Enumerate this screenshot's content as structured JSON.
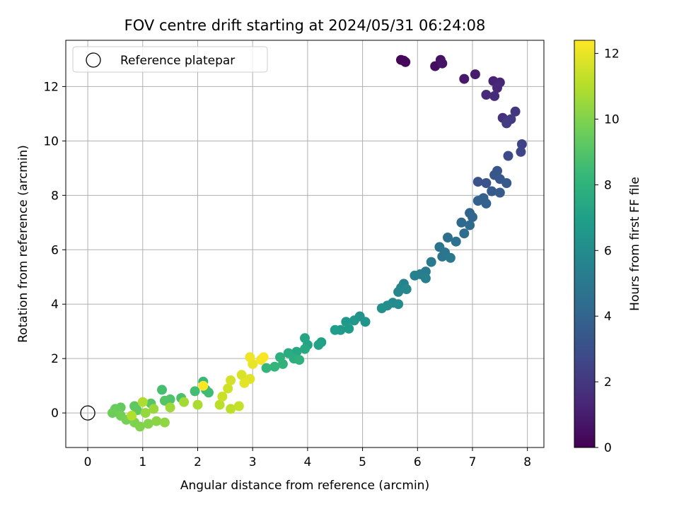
{
  "chart_data": {
    "type": "scatter",
    "title": "FOV centre drift starting at 2024/05/31 06:24:08",
    "xlabel": "Angular distance from reference (arcmin)",
    "ylabel": "Rotation from reference (arcmin)",
    "xlim": [
      -0.4,
      8.3
    ],
    "ylim": [
      -1.27,
      13.7
    ],
    "xticks": [
      0,
      1,
      2,
      3,
      4,
      5,
      6,
      7,
      8
    ],
    "yticks": [
      0,
      2,
      4,
      6,
      8,
      10,
      12
    ],
    "grid": true,
    "legend": {
      "placement": "top-left",
      "entries": [
        "Reference platepar"
      ]
    },
    "reference_point": {
      "x": 0,
      "y": 0,
      "label": "Reference platepar"
    },
    "colorbar": {
      "label": "Hours from first FF file",
      "range": [
        0,
        12.4
      ],
      "ticks": [
        0,
        2,
        4,
        6,
        8,
        10,
        12
      ],
      "colormap": "viridis",
      "colors": [
        "#440154",
        "#482878",
        "#3e4a89",
        "#31688e",
        "#26828e",
        "#1f9e89",
        "#35b779",
        "#6ece58",
        "#b5de2b",
        "#fde725"
      ]
    },
    "series": [
      {
        "points": [
          {
            "x": 5.7,
            "y": 12.98,
            "t": 0.1
          },
          {
            "x": 5.75,
            "y": 12.95,
            "t": 0.2
          },
          {
            "x": 5.78,
            "y": 12.9,
            "t": 0.3
          },
          {
            "x": 6.32,
            "y": 12.75,
            "t": 0.5
          },
          {
            "x": 6.42,
            "y": 12.98,
            "t": 0.6
          },
          {
            "x": 6.45,
            "y": 12.85,
            "t": 0.7
          },
          {
            "x": 6.85,
            "y": 12.28,
            "t": 0.9
          },
          {
            "x": 7.05,
            "y": 12.45,
            "t": 1.0
          },
          {
            "x": 7.38,
            "y": 12.2,
            "t": 1.2
          },
          {
            "x": 7.5,
            "y": 12.15,
            "t": 1.3
          },
          {
            "x": 7.45,
            "y": 11.95,
            "t": 1.4
          },
          {
            "x": 7.25,
            "y": 11.7,
            "t": 1.5
          },
          {
            "x": 7.4,
            "y": 11.65,
            "t": 1.6
          },
          {
            "x": 7.55,
            "y": 10.85,
            "t": 1.8
          },
          {
            "x": 7.65,
            "y": 10.75,
            "t": 1.9
          },
          {
            "x": 7.78,
            "y": 11.08,
            "t": 2.0
          },
          {
            "x": 7.7,
            "y": 10.8,
            "t": 2.1
          },
          {
            "x": 7.62,
            "y": 10.65,
            "t": 2.2
          },
          {
            "x": 7.9,
            "y": 9.88,
            "t": 2.5
          },
          {
            "x": 7.88,
            "y": 9.6,
            "t": 2.6
          },
          {
            "x": 7.65,
            "y": 9.45,
            "t": 2.8
          },
          {
            "x": 7.1,
            "y": 8.5,
            "t": 3.1
          },
          {
            "x": 7.25,
            "y": 8.45,
            "t": 3.2
          },
          {
            "x": 7.4,
            "y": 8.75,
            "t": 3.3
          },
          {
            "x": 7.45,
            "y": 8.9,
            "t": 3.3
          },
          {
            "x": 7.5,
            "y": 8.6,
            "t": 3.4
          },
          {
            "x": 7.62,
            "y": 8.45,
            "t": 3.5
          },
          {
            "x": 7.35,
            "y": 8.15,
            "t": 3.5
          },
          {
            "x": 7.5,
            "y": 8.1,
            "t": 3.6
          },
          {
            "x": 7.2,
            "y": 7.9,
            "t": 3.7
          },
          {
            "x": 7.1,
            "y": 7.8,
            "t": 3.8
          },
          {
            "x": 7.25,
            "y": 7.7,
            "t": 3.9
          },
          {
            "x": 6.95,
            "y": 7.35,
            "t": 4.0
          },
          {
            "x": 7.0,
            "y": 7.2,
            "t": 4.1
          },
          {
            "x": 6.8,
            "y": 7.0,
            "t": 4.2
          },
          {
            "x": 6.95,
            "y": 6.9,
            "t": 4.3
          },
          {
            "x": 6.85,
            "y": 6.6,
            "t": 4.4
          },
          {
            "x": 6.55,
            "y": 6.45,
            "t": 4.5
          },
          {
            "x": 6.7,
            "y": 6.3,
            "t": 4.6
          },
          {
            "x": 6.4,
            "y": 6.1,
            "t": 4.7
          },
          {
            "x": 6.5,
            "y": 5.9,
            "t": 4.8
          },
          {
            "x": 6.45,
            "y": 5.75,
            "t": 4.9
          },
          {
            "x": 6.6,
            "y": 5.7,
            "t": 5.0
          },
          {
            "x": 6.25,
            "y": 5.55,
            "t": 5.1
          },
          {
            "x": 6.15,
            "y": 5.2,
            "t": 5.2
          },
          {
            "x": 6.05,
            "y": 5.1,
            "t": 5.3
          },
          {
            "x": 5.95,
            "y": 5.05,
            "t": 5.4
          },
          {
            "x": 6.15,
            "y": 4.95,
            "t": 5.4
          },
          {
            "x": 5.75,
            "y": 4.75,
            "t": 5.5
          },
          {
            "x": 5.7,
            "y": 4.6,
            "t": 5.6
          },
          {
            "x": 5.65,
            "y": 4.45,
            "t": 5.7
          },
          {
            "x": 5.8,
            "y": 4.55,
            "t": 5.8
          },
          {
            "x": 5.55,
            "y": 4.05,
            "t": 5.9
          },
          {
            "x": 5.65,
            "y": 4.0,
            "t": 6.0
          },
          {
            "x": 5.45,
            "y": 3.95,
            "t": 6.1
          },
          {
            "x": 5.35,
            "y": 3.85,
            "t": 6.2
          },
          {
            "x": 4.95,
            "y": 3.55,
            "t": 6.3
          },
          {
            "x": 5.05,
            "y": 3.35,
            "t": 6.4
          },
          {
            "x": 4.85,
            "y": 3.4,
            "t": 6.5
          },
          {
            "x": 4.7,
            "y": 3.35,
            "t": 6.6
          },
          {
            "x": 4.6,
            "y": 3.05,
            "t": 6.7
          },
          {
            "x": 4.75,
            "y": 3.1,
            "t": 6.8
          },
          {
            "x": 4.5,
            "y": 3.05,
            "t": 6.9
          },
          {
            "x": 4.25,
            "y": 2.6,
            "t": 7.0
          },
          {
            "x": 4.2,
            "y": 2.5,
            "t": 7.1
          },
          {
            "x": 4.0,
            "y": 2.5,
            "t": 7.2
          },
          {
            "x": 3.95,
            "y": 2.75,
            "t": 7.3
          },
          {
            "x": 3.8,
            "y": 2.25,
            "t": 7.4
          },
          {
            "x": 3.95,
            "y": 2.35,
            "t": 7.5
          },
          {
            "x": 3.65,
            "y": 2.2,
            "t": 7.6
          },
          {
            "x": 3.75,
            "y": 2.0,
            "t": 7.7
          },
          {
            "x": 3.5,
            "y": 2.05,
            "t": 7.8
          },
          {
            "x": 3.85,
            "y": 1.95,
            "t": 7.9
          },
          {
            "x": 3.55,
            "y": 1.8,
            "t": 8.0
          },
          {
            "x": 3.4,
            "y": 1.7,
            "t": 8.1
          },
          {
            "x": 3.25,
            "y": 1.65,
            "t": 8.2
          },
          {
            "x": 2.1,
            "y": 1.15,
            "t": 8.3
          },
          {
            "x": 2.15,
            "y": 0.85,
            "t": 8.4
          },
          {
            "x": 2.2,
            "y": 0.75,
            "t": 8.5
          },
          {
            "x": 1.95,
            "y": 0.8,
            "t": 8.6
          },
          {
            "x": 1.35,
            "y": 0.85,
            "t": 8.7
          },
          {
            "x": 1.7,
            "y": 0.55,
            "t": 8.8
          },
          {
            "x": 1.5,
            "y": 0.5,
            "t": 8.9
          },
          {
            "x": 1.4,
            "y": 0.45,
            "t": 9.0
          },
          {
            "x": 1.15,
            "y": 0.35,
            "t": 9.1
          },
          {
            "x": 0.85,
            "y": 0.25,
            "t": 9.2
          },
          {
            "x": 0.9,
            "y": 0.1,
            "t": 9.3
          },
          {
            "x": 0.6,
            "y": 0.2,
            "t": 9.4
          },
          {
            "x": 0.5,
            "y": 0.15,
            "t": 9.5
          },
          {
            "x": 0.45,
            "y": 0.0,
            "t": 9.6
          },
          {
            "x": 0.6,
            "y": -0.1,
            "t": 9.7
          },
          {
            "x": 0.7,
            "y": -0.25,
            "t": 9.8
          },
          {
            "x": 0.85,
            "y": -0.35,
            "t": 9.9
          },
          {
            "x": 0.95,
            "y": -0.5,
            "t": 10.0
          },
          {
            "x": 1.1,
            "y": -0.4,
            "t": 10.1
          },
          {
            "x": 1.25,
            "y": -0.3,
            "t": 10.2
          },
          {
            "x": 1.4,
            "y": -0.35,
            "t": 10.3
          },
          {
            "x": 1.05,
            "y": 0.0,
            "t": 10.4
          },
          {
            "x": 1.2,
            "y": 0.15,
            "t": 10.5
          },
          {
            "x": 1.5,
            "y": 0.2,
            "t": 10.6
          },
          {
            "x": 1.75,
            "y": 0.4,
            "t": 10.7
          },
          {
            "x": 2.0,
            "y": 0.3,
            "t": 10.8
          },
          {
            "x": 1.0,
            "y": 0.4,
            "t": 10.9
          },
          {
            "x": 0.8,
            "y": -0.1,
            "t": 11.0
          },
          {
            "x": 2.4,
            "y": 0.3,
            "t": 11.1
          },
          {
            "x": 2.6,
            "y": 0.15,
            "t": 11.2
          },
          {
            "x": 2.75,
            "y": 0.25,
            "t": 11.3
          },
          {
            "x": 2.45,
            "y": 0.6,
            "t": 11.4
          },
          {
            "x": 2.55,
            "y": 0.9,
            "t": 11.5
          },
          {
            "x": 2.6,
            "y": 1.2,
            "t": 11.6
          },
          {
            "x": 2.8,
            "y": 1.4,
            "t": 11.7
          },
          {
            "x": 2.95,
            "y": 1.25,
            "t": 11.8
          },
          {
            "x": 2.85,
            "y": 1.1,
            "t": 11.9
          },
          {
            "x": 3.0,
            "y": 1.8,
            "t": 12.0
          },
          {
            "x": 2.95,
            "y": 2.05,
            "t": 12.1
          },
          {
            "x": 3.15,
            "y": 1.95,
            "t": 12.2
          },
          {
            "x": 3.2,
            "y": 2.05,
            "t": 12.3
          },
          {
            "x": 2.1,
            "y": 1.0,
            "t": 12.4
          }
        ]
      }
    ]
  }
}
